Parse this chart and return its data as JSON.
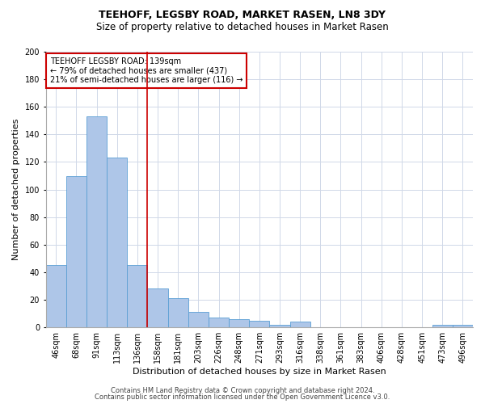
{
  "title1": "TEEHOFF, LEGSBY ROAD, MARKET RASEN, LN8 3DY",
  "title2": "Size of property relative to detached houses in Market Rasen",
  "xlabel": "Distribution of detached houses by size in Market Rasen",
  "ylabel": "Number of detached properties",
  "categories": [
    "46sqm",
    "68sqm",
    "91sqm",
    "113sqm",
    "136sqm",
    "158sqm",
    "181sqm",
    "203sqm",
    "226sqm",
    "248sqm",
    "271sqm",
    "293sqm",
    "316sqm",
    "338sqm",
    "361sqm",
    "383sqm",
    "406sqm",
    "428sqm",
    "451sqm",
    "473sqm",
    "496sqm"
  ],
  "values": [
    45,
    110,
    153,
    123,
    45,
    28,
    21,
    11,
    7,
    6,
    5,
    2,
    4,
    0,
    0,
    0,
    0,
    0,
    0,
    2,
    2
  ],
  "bar_color": "#aec6e8",
  "bar_edge_color": "#5a9fd4",
  "reference_line_x": 4.5,
  "reference_line_color": "#cc0000",
  "annotation_text": "TEEHOFF LEGSBY ROAD: 139sqm\n← 79% of detached houses are smaller (437)\n21% of semi-detached houses are larger (116) →",
  "annotation_box_color": "#ffffff",
  "annotation_box_edge": "#cc0000",
  "ylim": [
    0,
    200
  ],
  "yticks": [
    0,
    20,
    40,
    60,
    80,
    100,
    120,
    140,
    160,
    180,
    200
  ],
  "footer1": "Contains HM Land Registry data © Crown copyright and database right 2024.",
  "footer2": "Contains public sector information licensed under the Open Government Licence v3.0.",
  "background_color": "#ffffff",
  "grid_color": "#d0d8e8",
  "title1_fontsize": 9,
  "title2_fontsize": 8.5,
  "axis_label_fontsize": 8,
  "tick_fontsize": 7,
  "annotation_fontsize": 7,
  "footer_fontsize": 6
}
